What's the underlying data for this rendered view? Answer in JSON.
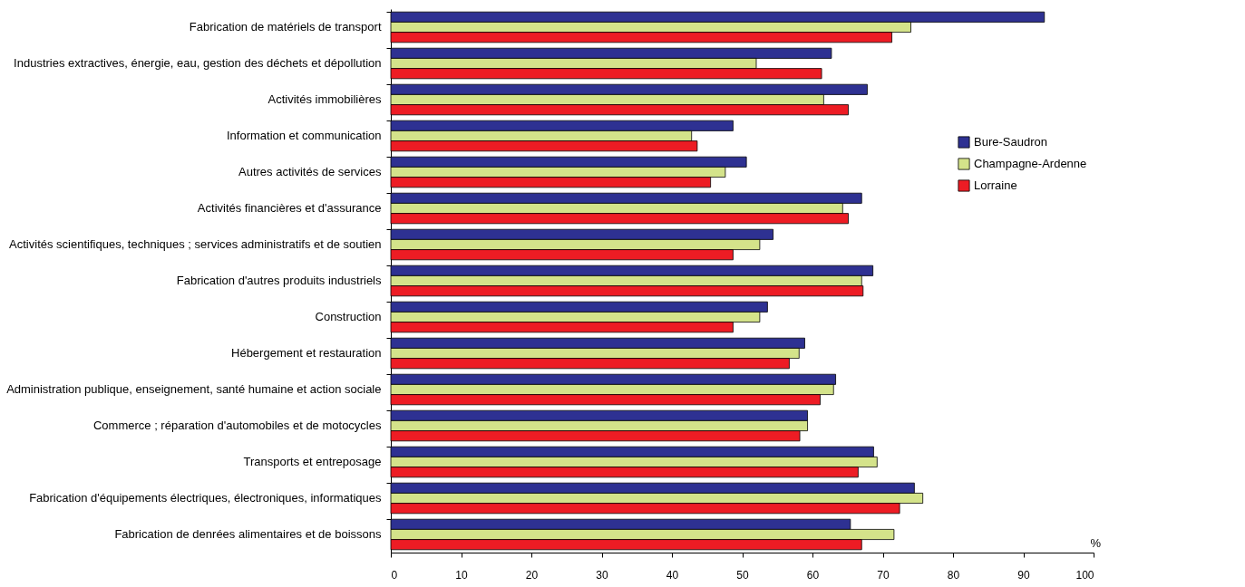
{
  "chart_data": {
    "type": "bar",
    "orientation": "horizontal",
    "xlabel": "%",
    "categories": [
      "Fabrication de matériels de transport",
      "Industries extractives, énergie, eau, gestion des déchets et dépollution",
      "Activités immobilières",
      "Information et communication",
      "Autres activités de services",
      "Activités financières et d'assurance",
      "Activités scientifiques, techniques ; services administratifs et de soutien",
      "Fabrication d'autres produits industriels",
      "Construction",
      "Hébergement et restauration",
      "Administration publique, enseignement, santé humaine et action sociale",
      "Commerce ; réparation d'automobiles et de motocycles",
      "Transports et entreposage",
      "Fabrication d'équipements électriques, électroniques, informatiques",
      "Fabrication de denrées alimentaires et de boissons"
    ],
    "series": [
      {
        "name": "Bure-Saudron",
        "color": "#2e3192",
        "values": [
          93.0,
          62.7,
          67.8,
          48.7,
          50.6,
          67.0,
          54.4,
          68.6,
          53.6,
          58.9,
          63.3,
          59.3,
          68.7,
          74.5,
          65.4
        ]
      },
      {
        "name": "Champagne-Ardenne",
        "color": "#d4e38a",
        "values": [
          74.0,
          52.0,
          61.6,
          42.8,
          47.6,
          64.3,
          52.5,
          67.0,
          52.5,
          58.1,
          63.0,
          59.3,
          69.2,
          75.7,
          71.6
        ]
      },
      {
        "name": "Lorraine",
        "color": "#ed1c24",
        "values": [
          71.3,
          61.3,
          65.1,
          43.6,
          45.5,
          65.1,
          48.7,
          67.2,
          48.7,
          56.7,
          61.1,
          58.2,
          66.5,
          72.4,
          67.0
        ]
      }
    ],
    "xlim": [
      0,
      100
    ],
    "xticks": [
      0,
      10,
      20,
      30,
      40,
      50,
      60,
      70,
      80,
      90,
      100
    ],
    "grid": false,
    "legend": "right"
  }
}
